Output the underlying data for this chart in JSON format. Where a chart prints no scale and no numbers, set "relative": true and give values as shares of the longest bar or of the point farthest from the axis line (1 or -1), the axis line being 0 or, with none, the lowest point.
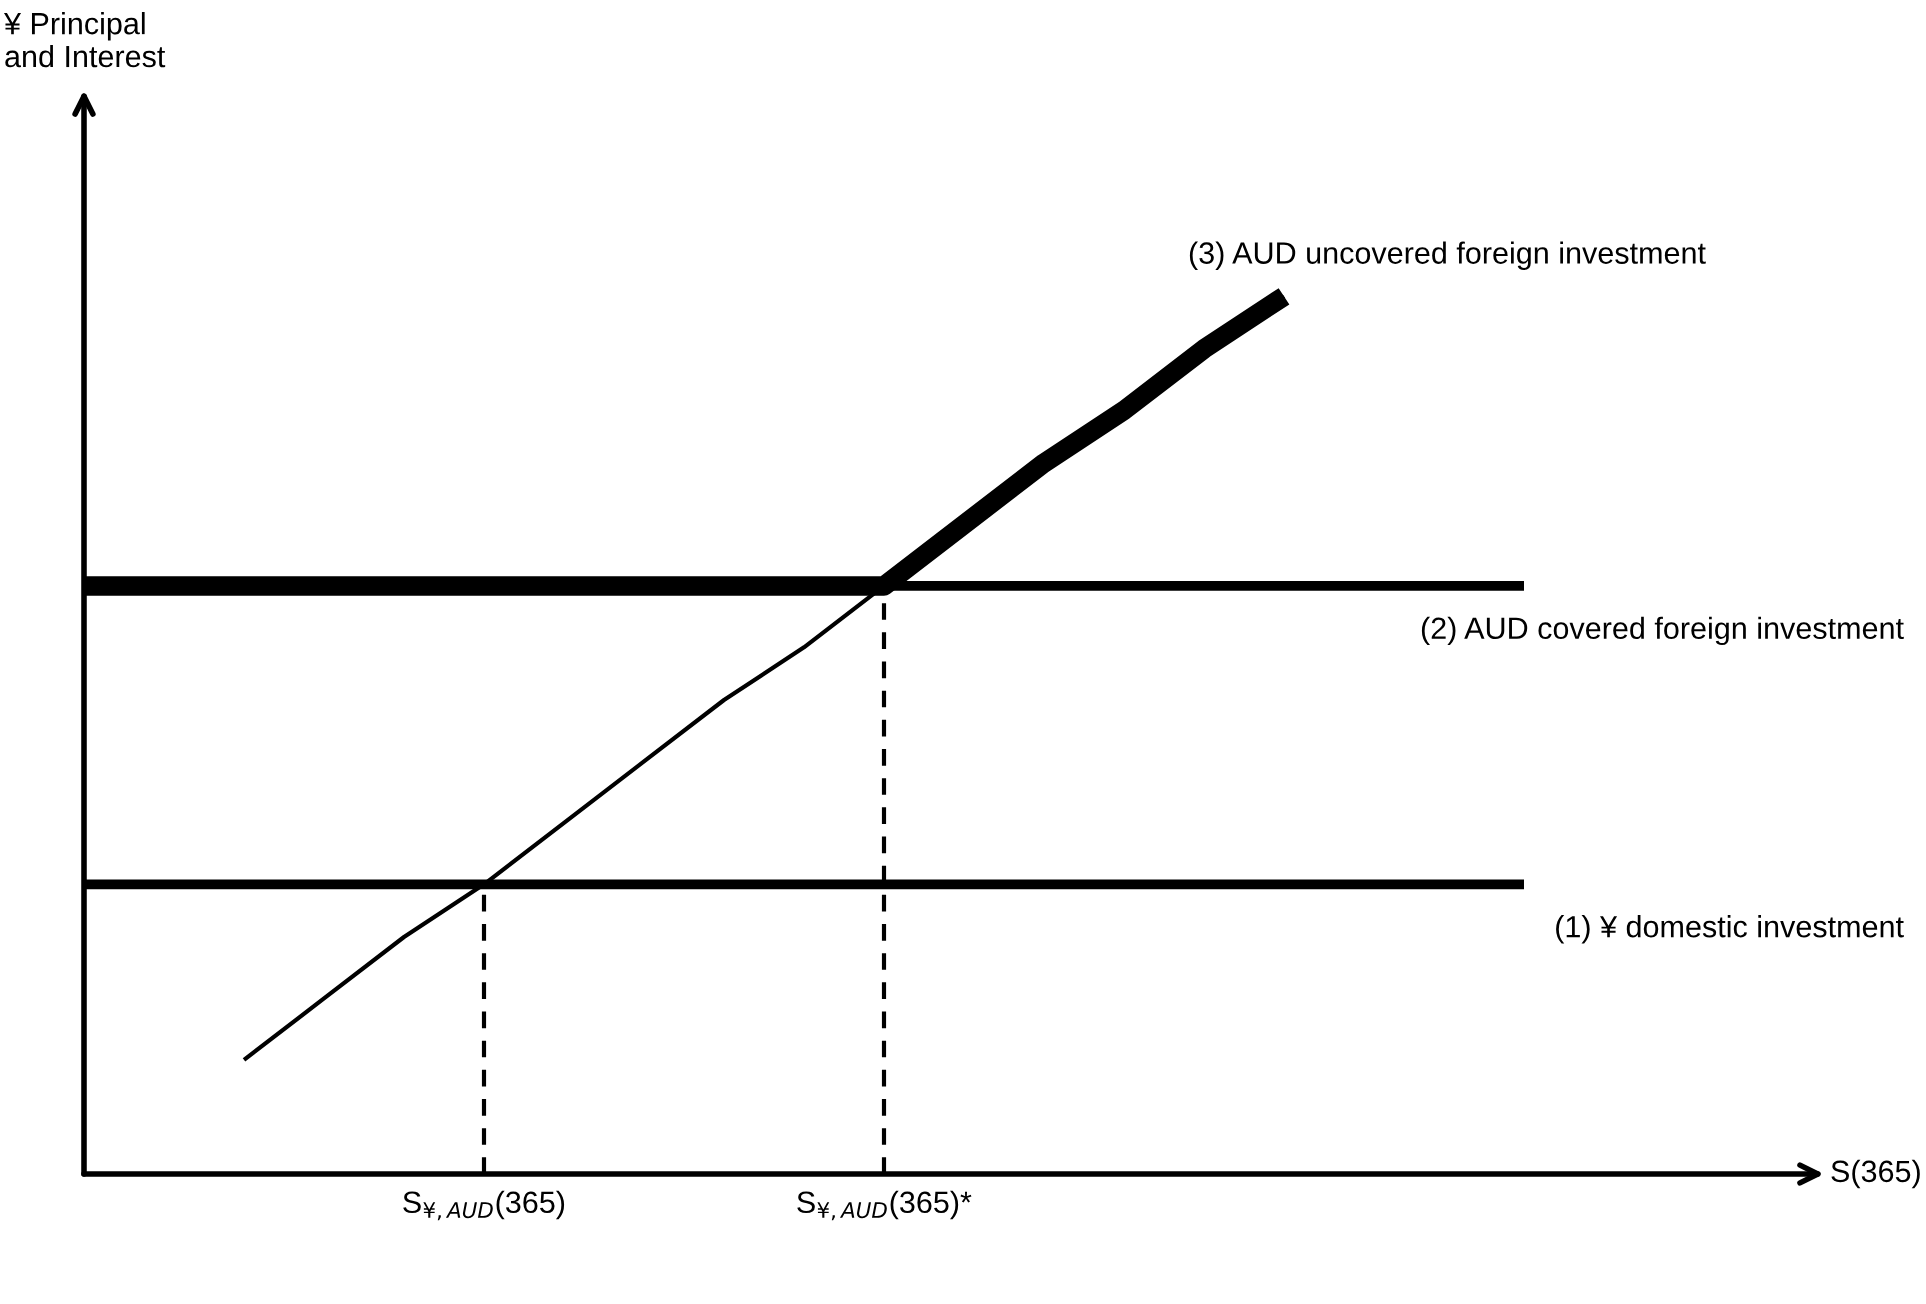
{
  "chart_data": {
    "type": "line",
    "relative": true,
    "xlabel": "S(365)",
    "annotations": [
      "¥ Principal\nand Interest"
    ],
    "legend": false,
    "grid": false,
    "categories": [
      null,
      null,
      null,
      null,
      null,
      "S$_{¥,AUD}$(365)",
      null,
      null,
      null,
      null,
      "S$_{¥,AUD}$(365)*",
      null,
      null,
      null,
      null,
      null,
      null,
      null,
      null,
      null,
      null,
      null,
      null
    ],
    "series": [
      {
        "name": "(1) ¥ domestic investment",
        "color": "#000000",
        "values": [
          0.33,
          0.33,
          0.33,
          0.33,
          0.33,
          0.33,
          0.33,
          0.33,
          0.33,
          0.33,
          0.33,
          0.33,
          0.33,
          0.33,
          0.33,
          0.33,
          0.33,
          0.33,
          0.33,
          null,
          null,
          null,
          null
        ]
      },
      {
        "name": "(2) AUD covered foreign investment",
        "color": "#000000",
        "values": [
          0.67,
          0.67,
          0.67,
          0.67,
          0.67,
          0.67,
          0.67,
          0.67,
          0.67,
          0.67,
          0.67,
          0.67,
          0.67,
          0.67,
          0.67,
          0.67,
          0.67,
          0.67,
          0.67,
          null,
          null,
          null,
          null
        ]
      },
      {
        "name": "(3) AUD uncovered foreign investment",
        "color": "#000000",
        "values": [
          null,
          null,
          0.13,
          0.2,
          0.27,
          0.33,
          0.4,
          0.47,
          0.54,
          0.6,
          0.67,
          0.74,
          0.81,
          0.87,
          0.94,
          1,
          null,
          null,
          null,
          null,
          null,
          null,
          null
        ]
      },
      {
        "color": "#000000",
        "values": [
          0.67,
          0.67,
          0.67,
          0.67,
          0.67,
          0.67,
          0.67,
          0.67,
          0.67,
          0.67,
          0.67,
          0.74,
          0.81,
          0.87,
          0.94,
          1,
          null,
          null,
          null,
          null,
          null,
          null,
          null
        ]
      },
      {
        "color": "#000000",
        "line_style": "dashed",
        "x": [
          "S$_{¥,AUD}$(365)",
          "S$_{¥,AUD}$(365)"
        ],
        "values": [
          0,
          0.33
        ]
      },
      {
        "color": "#000000",
        "line_style": "dashed",
        "x": [
          "S$_{¥,AUD}$(365)*",
          "S$_{¥,AUD}$(365)*"
        ],
        "values": [
          0,
          0.67
        ]
      }
    ]
  }
}
